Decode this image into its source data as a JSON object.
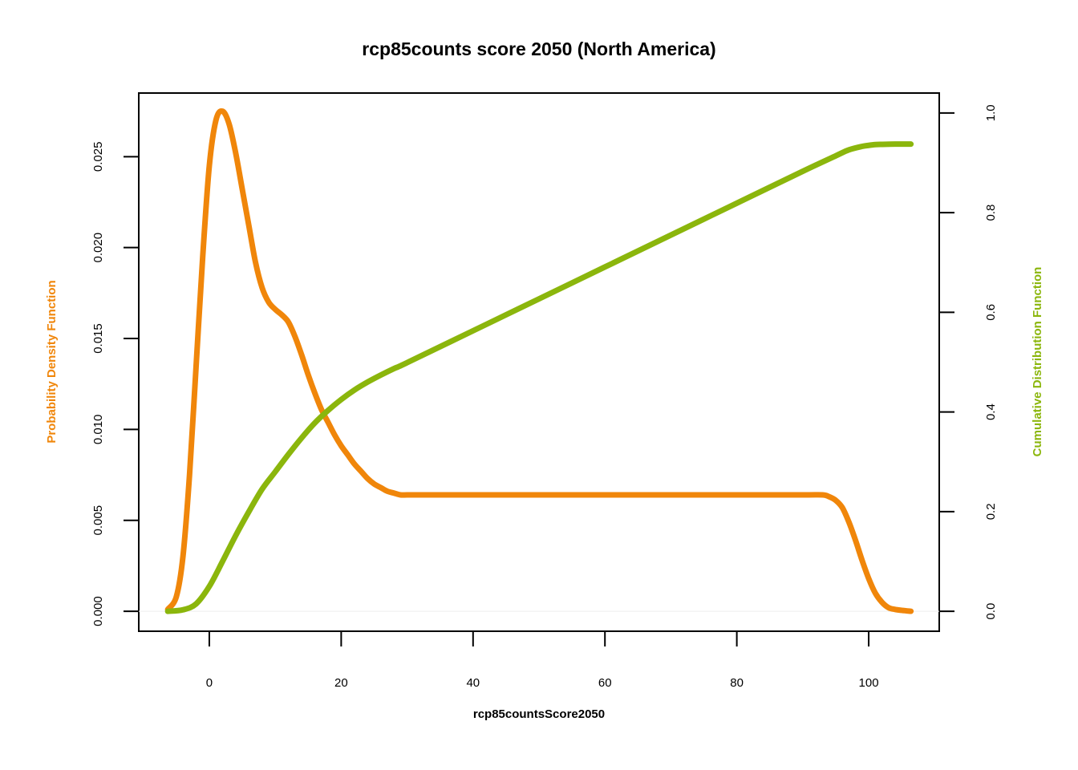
{
  "chart_data": {
    "type": "line",
    "title": "rcp85counts score 2050 (North America)",
    "xlabel": "rcp85countsScore2050",
    "ylabel_left": "Probability Density Function",
    "ylabel_right": "Cumulative Distribution Function",
    "xlim": [
      -10.7,
      110.7
    ],
    "ylim_left": [
      -0.0011,
      0.0285
    ],
    "ylim_right": [
      -0.04,
      1.04
    ],
    "x_ticks": [
      0,
      20,
      40,
      60,
      80,
      100
    ],
    "x_tick_labels": [
      "0",
      "20",
      "40",
      "60",
      "80",
      "100"
    ],
    "y_left_ticks": [
      0.0,
      0.005,
      0.01,
      0.015,
      0.02,
      0.025
    ],
    "y_left_tick_labels": [
      "0.000",
      "0.005",
      "0.010",
      "0.015",
      "0.020",
      "0.025"
    ],
    "y_right_ticks": [
      0.0,
      0.2,
      0.4,
      0.6,
      0.8,
      1.0
    ],
    "y_right_tick_labels": [
      "0.0",
      "0.2",
      "0.4",
      "0.6",
      "0.8",
      "1.0"
    ],
    "colors": {
      "pdf": "#F0860A",
      "cdf": "#8BB60C",
      "axis": "#000000",
      "baseline": "#EEEEEE"
    },
    "series": [
      {
        "name": "Probability Density Function",
        "axis": "left",
        "x": [
          -6.3,
          -5,
          -4,
          -3,
          -2,
          -1,
          0,
          1,
          2,
          3,
          4,
          5,
          6,
          7,
          8,
          9,
          10,
          11,
          12,
          13,
          14,
          15,
          16,
          17,
          18,
          19,
          20,
          21,
          22,
          23,
          24,
          25,
          26,
          27,
          28,
          29,
          30,
          32,
          35,
          40,
          50,
          60,
          70,
          80,
          90,
          93,
          94,
          95,
          96,
          97,
          98,
          99,
          100,
          101,
          102,
          103,
          104,
          105,
          106.4
        ],
        "y": [
          0.0001,
          0.0008,
          0.003,
          0.0075,
          0.0135,
          0.0195,
          0.0245,
          0.027,
          0.0275,
          0.0268,
          0.0252,
          0.0232,
          0.0212,
          0.0192,
          0.0178,
          0.017,
          0.0166,
          0.0163,
          0.0159,
          0.0151,
          0.0141,
          0.013,
          0.012,
          0.0111,
          0.0104,
          0.0097,
          0.0091,
          0.0086,
          0.0081,
          0.0077,
          0.0073,
          0.007,
          0.0068,
          0.0066,
          0.0065,
          0.0064,
          0.0064,
          0.0064,
          0.0064,
          0.0064,
          0.0064,
          0.0064,
          0.0064,
          0.0064,
          0.0064,
          0.0064,
          0.0063,
          0.0061,
          0.0057,
          0.0049,
          0.0039,
          0.0028,
          0.0018,
          0.001,
          0.0005,
          0.0002,
          0.0001,
          5e-05,
          0.0
        ]
      },
      {
        "name": "Cumulative Distribution Function",
        "axis": "right",
        "x": [
          -6.3,
          -4,
          -2,
          0,
          2,
          4,
          6,
          8,
          10,
          12,
          14,
          16,
          18,
          20,
          22,
          24,
          26,
          28,
          30,
          40,
          50,
          60,
          70,
          80,
          90,
          95,
          97,
          99,
          100,
          101,
          102,
          104,
          106.4
        ],
        "y": [
          0.0,
          0.003,
          0.015,
          0.05,
          0.1,
          0.152,
          0.2,
          0.245,
          0.28,
          0.315,
          0.348,
          0.378,
          0.403,
          0.425,
          0.444,
          0.46,
          0.474,
          0.487,
          0.499,
          0.563,
          0.627,
          0.691,
          0.755,
          0.819,
          0.883,
          0.914,
          0.926,
          0.933,
          0.935,
          0.9365,
          0.937,
          0.9375,
          0.9375
        ]
      }
    ]
  }
}
